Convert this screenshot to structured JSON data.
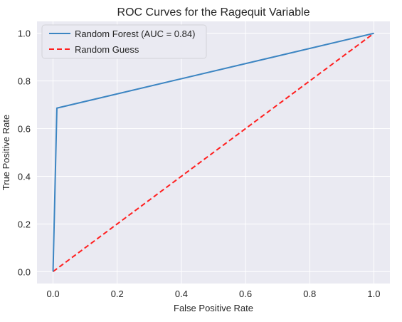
{
  "chart_data": {
    "type": "line",
    "title": "ROC Curves for the Ragequit Variable",
    "xlabel": "False Positive Rate",
    "ylabel": "True Positive Rate",
    "xlim": [
      -0.05,
      1.05
    ],
    "ylim": [
      -0.05,
      1.05
    ],
    "xticks": [
      0.0,
      0.2,
      0.4,
      0.6,
      0.8,
      1.0
    ],
    "yticks": [
      0.0,
      0.2,
      0.4,
      0.6,
      0.8,
      1.0
    ],
    "xtick_labels": [
      "0.0",
      "0.2",
      "0.4",
      "0.6",
      "0.8",
      "1.0"
    ],
    "ytick_labels": [
      "0.0",
      "0.2",
      "0.4",
      "0.6",
      "0.8",
      "1.0"
    ],
    "grid": true,
    "legend_position": "top-left",
    "series": [
      {
        "name": "Random Forest (AUC = 0.84)",
        "color": "#3c85c2",
        "style": "solid",
        "x": [
          0.0,
          0.012,
          1.0
        ],
        "y": [
          0.0,
          0.686,
          1.0
        ]
      },
      {
        "name": "Random Guess",
        "color": "#ff1f1f",
        "style": "dashed",
        "x": [
          0.0,
          1.0
        ],
        "y": [
          0.0,
          1.0
        ]
      }
    ],
    "colors": {
      "plot_background": "#eaeaf2",
      "grid": "#ffffff"
    }
  }
}
